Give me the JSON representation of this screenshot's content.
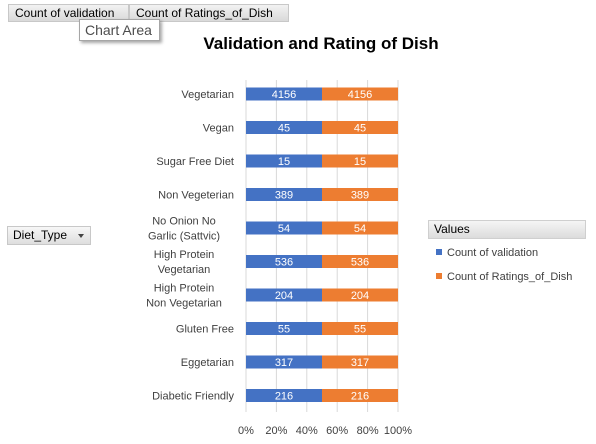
{
  "field_buttons": {
    "validation": "Count of validation",
    "ratings": "Count of Ratings_of_Dish"
  },
  "tooltip": "Chart Area",
  "row_field": "Diet_Type",
  "legend": {
    "header": "Values",
    "placement": "right"
  },
  "colors": {
    "validation": "#4472c4",
    "ratings": "#ed7d31"
  },
  "chart_data": {
    "type": "bar",
    "orientation": "horizontal",
    "stacking": "100%",
    "title": "Validation and Rating of Dish",
    "categories": [
      "Vegetarian",
      "Vegan",
      "Sugar Free Diet",
      "Non Vegeterian",
      "No Onion No Garlic (Sattvic)",
      "High Protein Vegetarian",
      "High Protein Non Vegetarian",
      "Gluten Free",
      "Eggetarian",
      "Diabetic Friendly"
    ],
    "series": [
      {
        "name": "Count of validation",
        "values": [
          4156,
          45,
          15,
          389,
          54,
          536,
          204,
          55,
          317,
          216
        ]
      },
      {
        "name": "Count of Ratings_of_Dish",
        "values": [
          4156,
          45,
          15,
          389,
          54,
          536,
          204,
          55,
          317,
          216
        ]
      }
    ],
    "x_ticks": [
      "0%",
      "20%",
      "40%",
      "60%",
      "80%",
      "100%"
    ],
    "xlim": [
      0,
      1
    ],
    "grid": true
  }
}
